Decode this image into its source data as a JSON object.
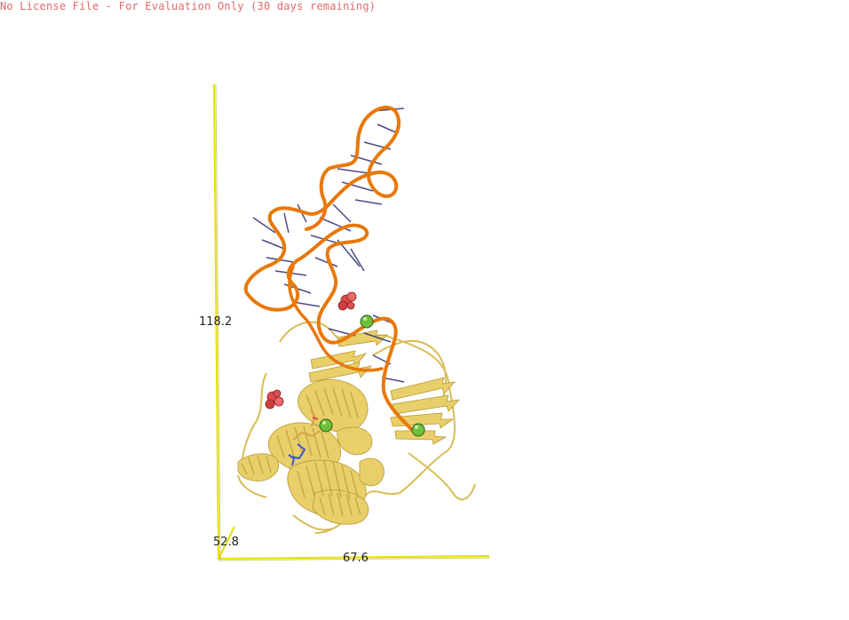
{
  "app": {
    "license_banner": "No License File - For Evaluation Only (30 days remaining)"
  },
  "viewer": {
    "axis_labels": {
      "y": "118.2",
      "z": "52.8",
      "x": "67.6"
    },
    "colors": {
      "axis": "#e8e000",
      "protein_ribbon": "#e9cf6a",
      "protein_ribbon_dark": "#b79a30",
      "rna_backbone": "#e8780a",
      "rna_bases": "#2a2f6e",
      "oxygen_atoms": "#e04a4a",
      "magnesium_ions": "#6fc03a",
      "ligand_carbon": "#d8a24a",
      "ligand_nitrogen": "#3b55c7"
    },
    "structures": [
      {
        "name": "protein-cartoon"
      },
      {
        "name": "trna-cartoon"
      },
      {
        "name": "ion-spheres"
      },
      {
        "name": "oxygen-spheres"
      }
    ]
  }
}
